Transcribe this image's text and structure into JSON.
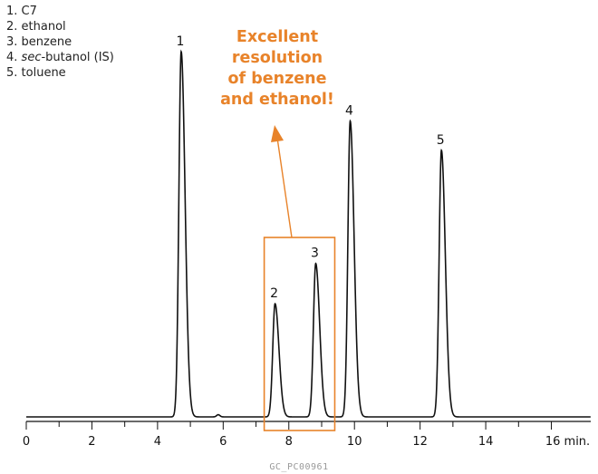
{
  "legend": [
    {
      "num": "1.",
      "pre": "",
      "em": "",
      "post": "C7"
    },
    {
      "num": "2.",
      "pre": "",
      "em": "",
      "post": "ethanol"
    },
    {
      "num": "3.",
      "pre": "",
      "em": "",
      "post": "benzene"
    },
    {
      "num": "4.",
      "pre": "",
      "em": "sec",
      "post": "-butanol (IS)"
    },
    {
      "num": "5.",
      "pre": "",
      "em": "",
      "post": "toluene"
    }
  ],
  "annotation": {
    "lines": [
      "Excellent",
      "resolution",
      "of benzene",
      "and ethanol!"
    ],
    "color": "#e8832a"
  },
  "footer_code": "GC_PC00961",
  "chart_data": {
    "type": "line",
    "xlabel": "min.",
    "xlim": [
      0,
      17.2
    ],
    "x_ticks": [
      0,
      2,
      4,
      6,
      8,
      10,
      12,
      14,
      16
    ],
    "x_tick_labels": [
      "0",
      "2",
      "4",
      "6",
      "8",
      "10",
      "12",
      "14",
      "16 min."
    ],
    "baseline": 0,
    "ylim": [
      -0.02,
      1.0
    ],
    "peaks": [
      {
        "label": "1",
        "name": "C7",
        "rt": 4.72,
        "height": 1.0
      },
      {
        "label": "2",
        "name": "ethanol",
        "rt": 7.58,
        "height": 0.31
      },
      {
        "label": "3",
        "name": "benzene",
        "rt": 8.82,
        "height": 0.42
      },
      {
        "label": "4",
        "name": "sec-butanol (IS)",
        "rt": 9.87,
        "height": 0.81
      },
      {
        "label": "5",
        "name": "toluene",
        "rt": 12.65,
        "height": 0.73
      }
    ],
    "highlight_range": [
      7.25,
      9.4
    ],
    "grid": false,
    "line_color": "#111111",
    "highlight_color": "#e8832a"
  }
}
